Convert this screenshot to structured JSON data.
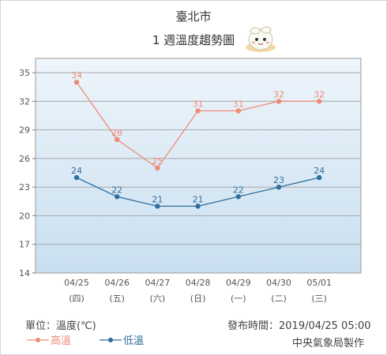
{
  "title": "臺北市",
  "subtitle": "1 週溫度趨勢圖",
  "unit_label": "單位：溫度(℃)",
  "issued_label": "發布時間：2019/04/25 05:00",
  "source_label": "中央氣象局製作",
  "colors": {
    "high": "#f08a78",
    "low": "#2f6f9f",
    "plot_bg_top": "#eef5fb",
    "plot_bg_bottom": "#c9dff0",
    "grid": "#a9a9a9"
  },
  "chart_data": {
    "type": "line",
    "categories": [
      "04/25",
      "04/26",
      "04/27",
      "04/28",
      "04/29",
      "04/30",
      "05/01"
    ],
    "category_weekdays": [
      "(四)",
      "(五)",
      "(六)",
      "(日)",
      "(一)",
      "(二)",
      "(三)"
    ],
    "series": [
      {
        "name": "高溫",
        "color": "#f08a78",
        "values": [
          34,
          28,
          25,
          31,
          31,
          32,
          32
        ]
      },
      {
        "name": "低溫",
        "color": "#2f6f9f",
        "values": [
          24,
          22,
          21,
          21,
          22,
          23,
          24
        ]
      }
    ],
    "y_ticks": [
      14,
      17,
      20,
      23,
      26,
      29,
      32,
      35
    ],
    "ylim": [
      14,
      36.5
    ],
    "grid": true,
    "legend": "bottom-left"
  }
}
